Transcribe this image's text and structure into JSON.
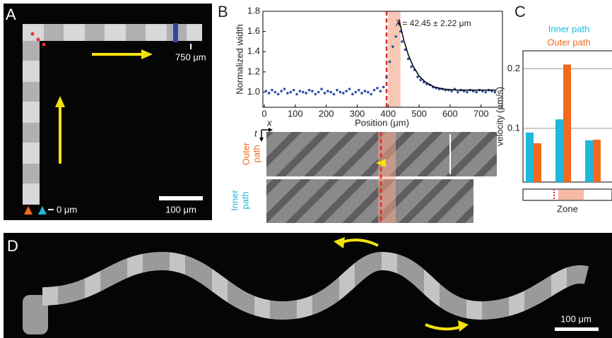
{
  "panels": {
    "a": {
      "label": "A",
      "end_label": "750 μm",
      "origin_label": "0 μm",
      "scale_bar": "100 μm"
    },
    "kymograph": {
      "x_axis": "x",
      "t_axis": "t",
      "outer": [
        "Outer",
        "path"
      ],
      "inner": [
        "Inner",
        "path"
      ]
    },
    "d": {
      "label": "D",
      "scale_bar": "100 μm"
    }
  },
  "chart_data": [
    {
      "type": "scatter",
      "label": "B",
      "annotation": "λ = 42.45 ± 2.22 μm",
      "xlabel": "Position (μm)",
      "ylabel": "Normalized width",
      "xlim": [
        0,
        760
      ],
      "xticks": [
        0,
        100,
        200,
        300,
        400,
        500,
        600,
        700
      ],
      "ylim": [
        0.85,
        1.8
      ],
      "yticks": [
        {
          "value": 1,
          "label": "1.0"
        },
        {
          "value": 1.2,
          "label": "1.2"
        },
        {
          "value": 1.4,
          "label": "1.4"
        },
        {
          "value": 1.6,
          "label": "1.6"
        },
        {
          "value": 1.8,
          "label": "1.8"
        }
      ],
      "color": "#2c4fa3",
      "x": [
        5,
        15,
        25,
        35,
        45,
        55,
        65,
        75,
        85,
        95,
        105,
        115,
        125,
        135,
        145,
        155,
        165,
        175,
        185,
        195,
        205,
        215,
        225,
        235,
        245,
        255,
        265,
        275,
        285,
        295,
        305,
        315,
        325,
        335,
        345,
        355,
        365,
        375,
        385,
        395,
        405,
        415,
        425,
        435,
        440,
        445,
        455,
        465,
        475,
        485,
        495,
        505,
        515,
        525,
        535,
        545,
        555,
        565,
        575,
        585,
        595,
        605,
        615,
        625,
        635,
        645,
        655,
        665,
        675,
        685,
        695,
        705,
        715,
        725,
        735,
        745
      ],
      "values": [
        1.01,
        0.99,
        1.02,
        1.0,
        0.98,
        1.01,
        1.03,
        0.99,
        1.0,
        1.02,
        0.98,
        1.01,
        1.0,
        0.99,
        1.02,
        1.01,
        0.98,
        1.0,
        1.03,
        0.99,
        1.01,
        1.0,
        0.98,
        1.02,
        1.0,
        0.99,
        1.01,
        1.03,
        0.98,
        1.0,
        1.02,
        0.99,
        1.01,
        1.0,
        0.98,
        1.02,
        1.04,
        1.01,
        1.05,
        1.15,
        1.3,
        1.45,
        1.55,
        1.68,
        1.6,
        1.5,
        1.42,
        1.33,
        1.25,
        1.22,
        1.15,
        1.12,
        1.1,
        1.08,
        1.07,
        1.05,
        1.04,
        1.03,
        1.03,
        1.02,
        1.02,
        1.01,
        1.03,
        1.0,
        1.02,
        1.01,
        1.0,
        1.02,
        1.01,
        1.0,
        1.02,
        1.01,
        1.0,
        1.02,
        1.01,
        1.0
      ],
      "fit": {
        "color": "#000000",
        "x": [
          435,
          450,
          465,
          480,
          500,
          520,
          550,
          580,
          620,
          680,
          750
        ],
        "values": [
          1.72,
          1.52,
          1.37,
          1.26,
          1.16,
          1.1,
          1.05,
          1.03,
          1.02,
          1.02,
          1.02
        ]
      },
      "marker_x": 395,
      "highlight_span": [
        400,
        440
      ]
    },
    {
      "type": "bar",
      "label": "C",
      "xlabel": "Zone",
      "ylabel": "velocity (μm/s)",
      "categories": [
        null,
        null,
        null
      ],
      "ylim": [
        0.01,
        0.23
      ],
      "yticks": [
        0.1,
        0.2
      ],
      "grid": true,
      "series": [
        {
          "name": "Inner path",
          "color": "#1fb8dc",
          "values": [
            0.093,
            0.115,
            0.08
          ]
        },
        {
          "name": "Outer path",
          "color": "#f46a1c",
          "values": [
            0.075,
            0.207,
            0.081
          ]
        }
      ]
    }
  ]
}
